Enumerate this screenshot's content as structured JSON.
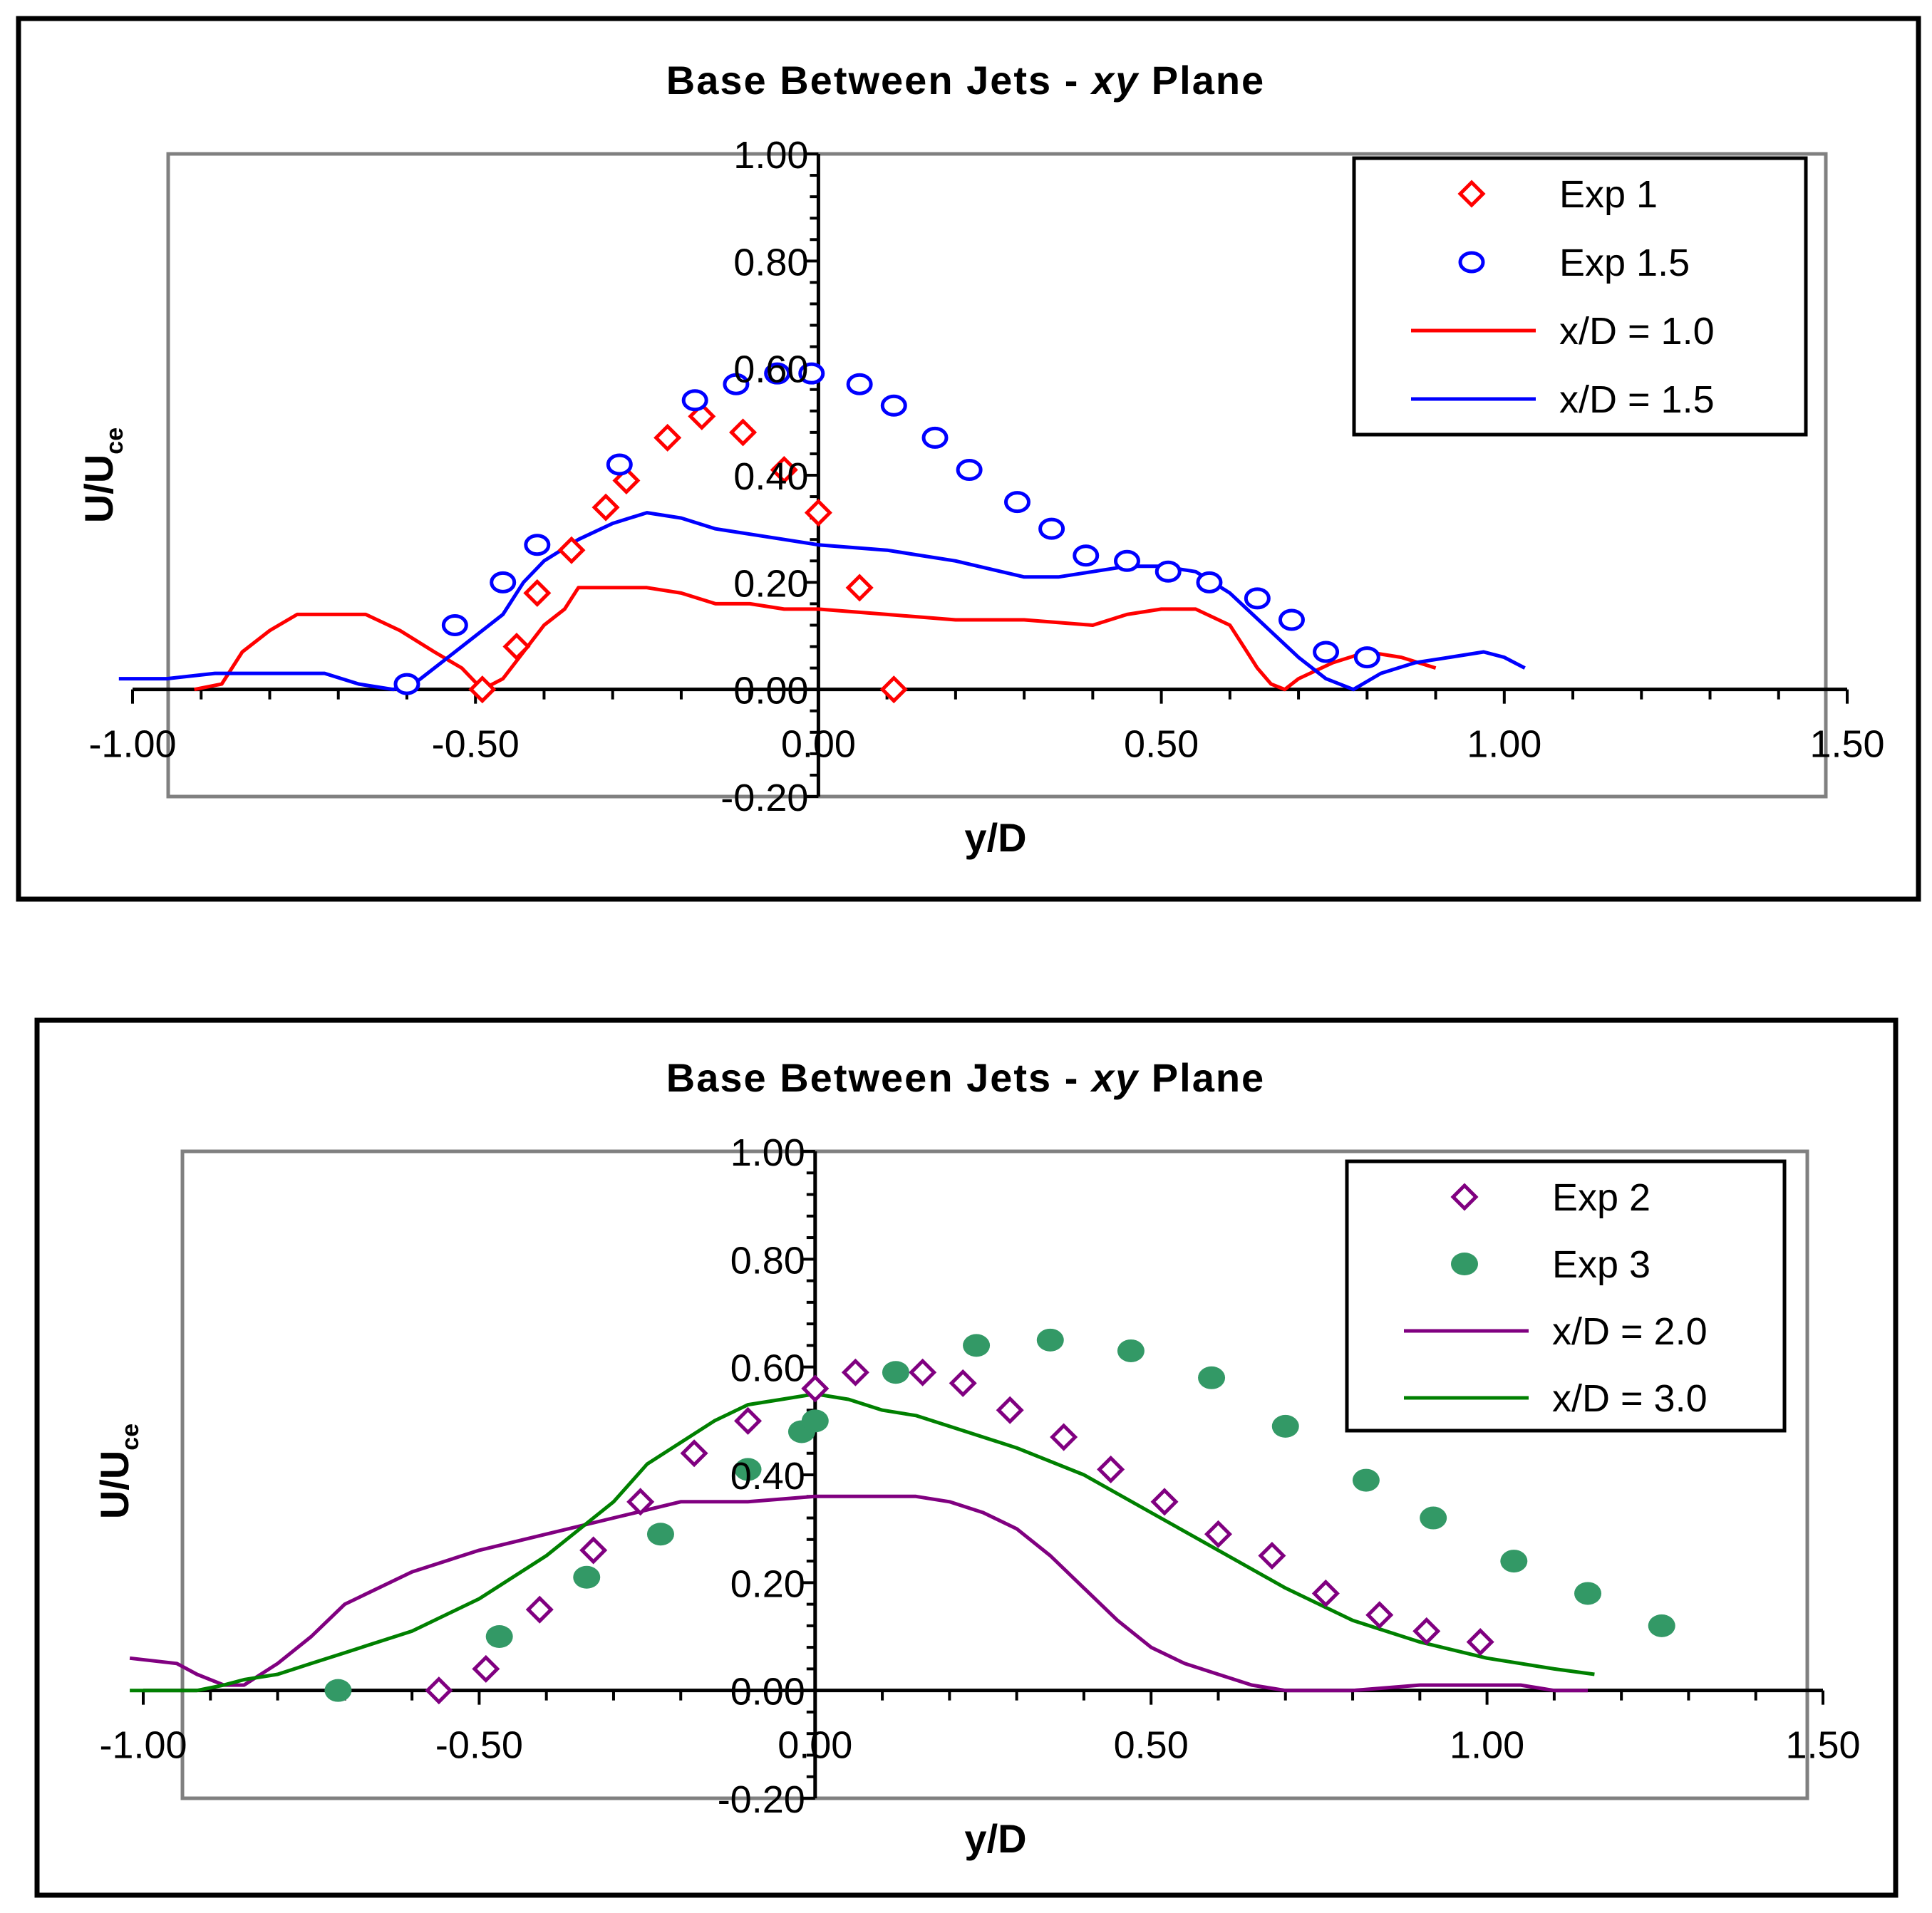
{
  "chart_data": [
    {
      "type": "scatter",
      "title": "Base Between Jets - ",
      "title_italic": "xy",
      "title_end": " Plane",
      "xlabel": "y/D",
      "ylabel_main": "U/U",
      "ylabel_sub": "ce",
      "xlim": [
        -1.0,
        1.5
      ],
      "ylim": [
        -0.2,
        1.0
      ],
      "xticks": [
        "-1.00",
        "-0.50",
        "0.00",
        "0.50",
        "1.00",
        "1.50"
      ],
      "yticks": [
        "-0.20",
        "0.00",
        "0.20",
        "0.40",
        "0.60",
        "0.80",
        "1.00"
      ],
      "series": [
        {
          "name": "Exp 1",
          "kind": "marker",
          "marker": "diamond",
          "color": "#ff0000",
          "x": [
            -0.49,
            -0.44,
            -0.41,
            -0.36,
            -0.31,
            -0.28,
            -0.22,
            -0.17,
            -0.11,
            -0.05,
            0.0,
            0.06,
            0.11
          ],
          "y": [
            0.0,
            0.08,
            0.18,
            0.26,
            0.34,
            0.39,
            0.47,
            0.51,
            0.48,
            0.41,
            0.33,
            0.19,
            0.0
          ]
        },
        {
          "name": "Exp 1.5",
          "kind": "marker",
          "marker": "circle",
          "color": "#0000ff",
          "x": [
            -0.6,
            -0.53,
            -0.46,
            -0.41,
            -0.29,
            -0.18,
            -0.12,
            -0.06,
            -0.01,
            0.06,
            0.11,
            0.17,
            0.22,
            0.29,
            0.34,
            0.39,
            0.45,
            0.51,
            0.57,
            0.64,
            0.69,
            0.74,
            0.8
          ],
          "y": [
            0.01,
            0.12,
            0.2,
            0.27,
            0.42,
            0.54,
            0.57,
            0.59,
            0.59,
            0.57,
            0.53,
            0.47,
            0.41,
            0.35,
            0.3,
            0.25,
            0.24,
            0.22,
            0.2,
            0.17,
            0.13,
            0.07,
            0.06
          ]
        },
        {
          "name": "x/D = 1.0",
          "kind": "line",
          "color": "#ff0000",
          "x": [
            -0.91,
            -0.87,
            -0.84,
            -0.8,
            -0.76,
            -0.7,
            -0.66,
            -0.61,
            -0.56,
            -0.52,
            -0.49,
            -0.46,
            -0.43,
            -0.4,
            -0.37,
            -0.35,
            -0.3,
            -0.25,
            -0.2,
            -0.15,
            -0.1,
            -0.05,
            0.0,
            0.1,
            0.2,
            0.3,
            0.4,
            0.45,
            0.5,
            0.55,
            0.6,
            0.62,
            0.64,
            0.66,
            0.68,
            0.7,
            0.75,
            0.8,
            0.85,
            0.9
          ],
          "y": [
            0.0,
            0.01,
            0.07,
            0.11,
            0.14,
            0.14,
            0.14,
            0.11,
            0.07,
            0.04,
            0.0,
            0.02,
            0.07,
            0.12,
            0.15,
            0.19,
            0.19,
            0.19,
            0.18,
            0.16,
            0.16,
            0.15,
            0.15,
            0.14,
            0.13,
            0.13,
            0.12,
            0.14,
            0.15,
            0.15,
            0.12,
            0.08,
            0.04,
            0.01,
            0.0,
            0.02,
            0.05,
            0.07,
            0.06,
            0.04
          ]
        },
        {
          "name": "x/D = 1.5",
          "kind": "line",
          "color": "#0000ff",
          "x": [
            -1.02,
            -0.95,
            -0.88,
            -0.8,
            -0.72,
            -0.67,
            -0.62,
            -0.59,
            -0.55,
            -0.5,
            -0.46,
            -0.43,
            -0.4,
            -0.35,
            -0.3,
            -0.25,
            -0.2,
            -0.15,
            -0.1,
            -0.05,
            0.0,
            0.1,
            0.2,
            0.3,
            0.35,
            0.4,
            0.45,
            0.5,
            0.55,
            0.6,
            0.65,
            0.7,
            0.74,
            0.78,
            0.82,
            0.87,
            0.92,
            0.97,
            1.0,
            1.03
          ],
          "y": [
            0.02,
            0.02,
            0.03,
            0.03,
            0.03,
            0.01,
            0.0,
            0.01,
            0.05,
            0.1,
            0.14,
            0.2,
            0.24,
            0.28,
            0.31,
            0.33,
            0.32,
            0.3,
            0.29,
            0.28,
            0.27,
            0.26,
            0.24,
            0.21,
            0.21,
            0.22,
            0.23,
            0.23,
            0.22,
            0.18,
            0.12,
            0.06,
            0.02,
            0.0,
            0.03,
            0.05,
            0.06,
            0.07,
            0.06,
            0.04
          ]
        }
      ],
      "legend": {
        "position": "top-right"
      }
    },
    {
      "type": "scatter",
      "title": "Base Between Jets - ",
      "title_italic": "xy",
      "title_end": " Plane",
      "xlabel": "y/D",
      "ylabel_main": "U/U",
      "ylabel_sub": "ce",
      "xlim": [
        -1.0,
        1.5
      ],
      "ylim": [
        -0.2,
        1.0
      ],
      "xticks": [
        "-1.00",
        "-0.50",
        "0.00",
        "0.50",
        "1.00",
        "1.50"
      ],
      "yticks": [
        "-0.20",
        "0.00",
        "0.20",
        "0.40",
        "0.60",
        "0.80",
        "1.00"
      ],
      "series": [
        {
          "name": "Exp 2",
          "kind": "marker",
          "marker": "diamond",
          "color": "#800080",
          "x": [
            -0.56,
            -0.49,
            -0.41,
            -0.33,
            -0.26,
            -0.18,
            -0.1,
            -0.0,
            0.06,
            0.16,
            0.22,
            0.29,
            0.37,
            0.44,
            0.52,
            0.6,
            0.68,
            0.76,
            0.84,
            0.91,
            0.99
          ],
          "y": [
            0.0,
            0.04,
            0.15,
            0.26,
            0.35,
            0.44,
            0.5,
            0.56,
            0.59,
            0.59,
            0.57,
            0.52,
            0.47,
            0.41,
            0.35,
            0.29,
            0.25,
            0.18,
            0.14,
            0.11,
            0.09
          ]
        },
        {
          "name": "Exp 3",
          "kind": "marker",
          "marker": "dot",
          "color": "#339966",
          "x": [
            -0.71,
            -0.47,
            -0.34,
            -0.23,
            -0.1,
            -0.02,
            0.0,
            0.12,
            0.24,
            0.35,
            0.47,
            0.59,
            0.7,
            0.82,
            0.92,
            1.04,
            1.15,
            1.26
          ],
          "y": [
            0.0,
            0.1,
            0.21,
            0.29,
            0.41,
            0.48,
            0.5,
            0.59,
            0.64,
            0.65,
            0.63,
            0.58,
            0.49,
            0.39,
            0.32,
            0.24,
            0.18,
            0.12
          ]
        },
        {
          "name": "x/D = 2.0",
          "kind": "line",
          "color": "#800080",
          "x": [
            -1.02,
            -0.95,
            -0.92,
            -0.88,
            -0.85,
            -0.8,
            -0.75,
            -0.7,
            -0.6,
            -0.5,
            -0.4,
            -0.3,
            -0.2,
            -0.1,
            0.0,
            0.1,
            0.15,
            0.2,
            0.25,
            0.3,
            0.35,
            0.4,
            0.45,
            0.5,
            0.55,
            0.6,
            0.65,
            0.7,
            0.75,
            0.8,
            0.9,
            1.0,
            1.05,
            1.1,
            1.15
          ],
          "y": [
            0.06,
            0.05,
            0.03,
            0.01,
            0.01,
            0.05,
            0.1,
            0.16,
            0.22,
            0.26,
            0.29,
            0.32,
            0.35,
            0.35,
            0.36,
            0.36,
            0.36,
            0.35,
            0.33,
            0.3,
            0.25,
            0.19,
            0.13,
            0.08,
            0.05,
            0.03,
            0.01,
            0.0,
            0.0,
            0.0,
            0.01,
            0.01,
            0.01,
            0.0,
            0.0
          ]
        },
        {
          "name": "x/D = 3.0",
          "kind": "line",
          "color": "#008000",
          "x": [
            -1.02,
            -0.92,
            -0.88,
            -0.85,
            -0.8,
            -0.75,
            -0.7,
            -0.6,
            -0.5,
            -0.4,
            -0.3,
            -0.25,
            -0.2,
            -0.15,
            -0.1,
            -0.05,
            0.0,
            0.05,
            0.1,
            0.15,
            0.2,
            0.3,
            0.4,
            0.5,
            0.6,
            0.7,
            0.8,
            0.9,
            1.0,
            1.05,
            1.1,
            1.16
          ],
          "y": [
            0.0,
            0.0,
            0.01,
            0.02,
            0.03,
            0.05,
            0.07,
            0.11,
            0.17,
            0.25,
            0.35,
            0.42,
            0.46,
            0.5,
            0.53,
            0.54,
            0.55,
            0.54,
            0.52,
            0.51,
            0.49,
            0.45,
            0.4,
            0.33,
            0.26,
            0.19,
            0.13,
            0.09,
            0.06,
            0.05,
            0.04,
            0.03
          ]
        }
      ],
      "legend": {
        "position": "top-right"
      }
    }
  ]
}
